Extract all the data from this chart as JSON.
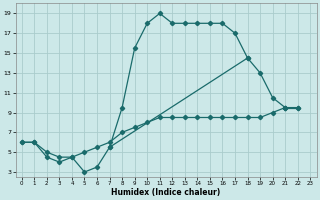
{
  "xlabel": "Humidex (Indice chaleur)",
  "bg_color": "#cce8e8",
  "line_color": "#1a6b6b",
  "grid_color": "#aacccc",
  "xlim": [
    -0.5,
    23.5
  ],
  "ylim": [
    2.5,
    20
  ],
  "xticks": [
    0,
    1,
    2,
    3,
    4,
    5,
    6,
    7,
    8,
    9,
    10,
    11,
    12,
    13,
    14,
    15,
    16,
    17,
    18,
    19,
    20,
    21,
    22,
    23
  ],
  "yticks": [
    3,
    5,
    7,
    9,
    11,
    13,
    15,
    17,
    19
  ],
  "line1_x": [
    0,
    1,
    2,
    3,
    4,
    5,
    6,
    7,
    8,
    9,
    10,
    11,
    12,
    13,
    14,
    15,
    16,
    17,
    18
  ],
  "line1_y": [
    6,
    6,
    4.5,
    4,
    4.5,
    3,
    3.5,
    5.5,
    9.5,
    15.5,
    18,
    19,
    18,
    18,
    18,
    18,
    18,
    17,
    14.5
  ],
  "line2_x": [
    7,
    18,
    19,
    20,
    21
  ],
  "line2_y": [
    5.5,
    14.5,
    13,
    10.5,
    9.5
  ],
  "line3_x": [
    21,
    22
  ],
  "line3_y": [
    9.5,
    9.5
  ],
  "line4_x": [
    0,
    1,
    2,
    3,
    4,
    5,
    6,
    7,
    8,
    9,
    10,
    11,
    12,
    13,
    14,
    15,
    16,
    17,
    18,
    19,
    20,
    21,
    22
  ],
  "line4_y": [
    6,
    6,
    5,
    4.5,
    4.5,
    5,
    5.5,
    6,
    7,
    7.5,
    8,
    8.5,
    8.5,
    8.5,
    8.5,
    8.5,
    8.5,
    8.5,
    8.5,
    8.5,
    9,
    9.5,
    9.5
  ]
}
